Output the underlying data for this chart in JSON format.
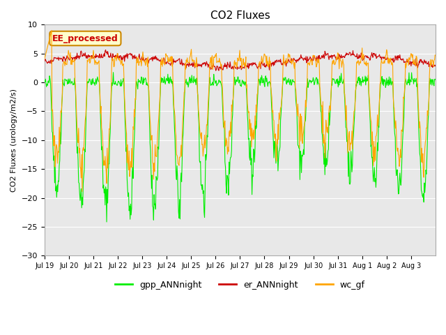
{
  "title": "CO2 Fluxes",
  "ylabel": "CO2 Fluxes (urology/m2/s)",
  "ylim": [
    -30,
    10
  ],
  "yticks": [
    -30,
    -25,
    -20,
    -15,
    -10,
    -5,
    0,
    5,
    10
  ],
  "bg_color": "#e8e8e8",
  "fig_color": "#ffffff",
  "gpp_color": "#00ee00",
  "er_color": "#cc0000",
  "wc_color": "#ffa500",
  "n_days": 16,
  "xtick_labels": [
    "Jul 19",
    "Jul 20",
    "Jul 21",
    "Jul 22",
    "Jul 23",
    "Jul 24",
    "Jul 25",
    "Jul 26",
    "Jul 27",
    "Jul 28",
    "Jul 29",
    "Jul 30",
    "Jul 31",
    "Aug 1",
    "Aug 2",
    "Aug 3"
  ],
  "legend_label": "EE_processed",
  "legend_bg": "#ffffcc",
  "legend_border": "#cc8800",
  "points_per_day": 48,
  "seed": 42
}
